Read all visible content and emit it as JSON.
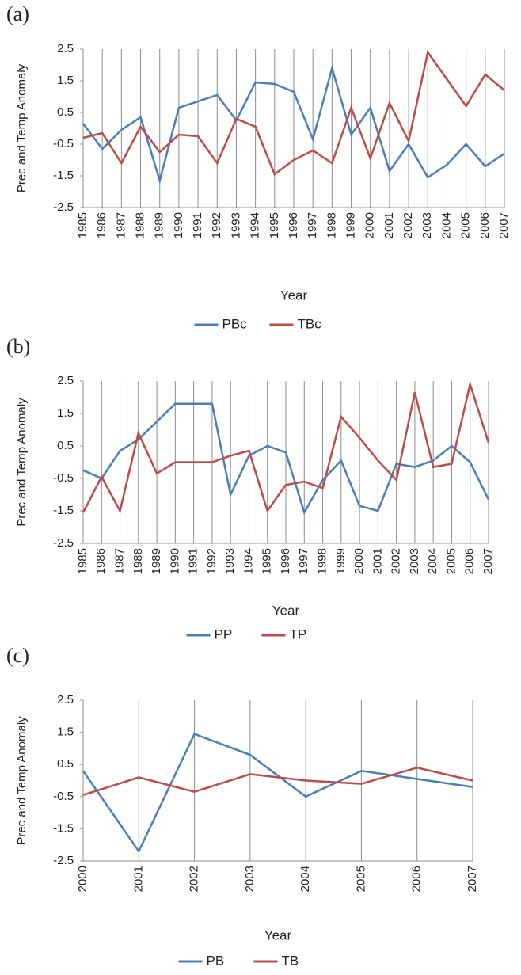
{
  "chart_data": [
    {
      "type": "line",
      "title": "(a)",
      "x_label": "Year",
      "y_label": "Prec and Temp Anomaly",
      "categories": [
        "1985",
        "1986",
        "1987",
        "1988",
        "1989",
        "1990",
        "1991",
        "1992",
        "1993",
        "1994",
        "1995",
        "1996",
        "1997",
        "1998",
        "1999",
        "2000",
        "2001",
        "2002",
        "2003",
        "2004",
        "2005",
        "2006",
        "2007"
      ],
      "series": [
        {
          "name": "PBc",
          "color": "#4a7ebb",
          "values": [
            0.15,
            -0.65,
            -0.05,
            0.35,
            -1.65,
            0.65,
            0.85,
            1.05,
            0.25,
            1.45,
            1.4,
            1.15,
            -0.35,
            1.9,
            -0.2,
            0.65,
            -1.35,
            -0.5,
            -1.55,
            -1.15,
            -0.5,
            -1.2,
            -0.8
          ]
        },
        {
          "name": "TBc",
          "color": "#be4b48",
          "values": [
            -0.3,
            -0.15,
            -1.1,
            0.05,
            -0.75,
            -0.2,
            -0.25,
            -1.1,
            0.3,
            0.05,
            -1.45,
            -1.0,
            -0.7,
            -1.1,
            0.65,
            -0.95,
            0.8,
            -0.4,
            2.4,
            1.55,
            0.7,
            1.7,
            1.2
          ]
        }
      ],
      "ylim": [
        -2.5,
        2.5
      ],
      "yticks": [
        -2.5,
        -1.5,
        -0.5,
        0.5,
        1.5,
        2.5
      ],
      "grid": "x",
      "legend": "bottom"
    },
    {
      "type": "line",
      "title": "(b)",
      "x_label": "Year",
      "y_label": "Prec and Temp Anomaly",
      "categories": [
        "1985",
        "1986",
        "1987",
        "1988",
        "1989",
        "1990",
        "1991",
        "1992",
        "1993",
        "1994",
        "1995",
        "1996",
        "1997",
        "1998",
        "1999",
        "2000",
        "2001",
        "2002",
        "2003",
        "2004",
        "2005",
        "2006",
        "2007"
      ],
      "series": [
        {
          "name": "PP",
          "color": "#4a7ebb",
          "values": [
            -0.25,
            -0.5,
            0.35,
            0.7,
            1.25,
            1.8,
            1.8,
            1.8,
            -1.0,
            0.2,
            0.5,
            0.3,
            -1.55,
            -0.55,
            0.05,
            -1.35,
            -1.5,
            -0.05,
            -0.15,
            0.05,
            0.5,
            0.0,
            -1.15
          ]
        },
        {
          "name": "TP",
          "color": "#be4b48",
          "values": [
            -1.55,
            -0.45,
            -1.5,
            0.9,
            -0.35,
            0.0,
            0.0,
            0.0,
            0.2,
            0.35,
            -1.5,
            -0.7,
            -0.6,
            -0.8,
            1.4,
            0.75,
            0.05,
            -0.55,
            2.15,
            -0.15,
            -0.05,
            2.4,
            0.6
          ]
        }
      ],
      "ylim": [
        -2.5,
        2.5
      ],
      "yticks": [
        -2.5,
        -1.5,
        -0.5,
        0.5,
        1.5,
        2.5
      ],
      "grid": "x",
      "legend": "bottom"
    },
    {
      "type": "line",
      "title": "(c)",
      "x_label": "Year",
      "y_label": "Prec and Temp Anomaly",
      "categories": [
        "2000",
        "2001",
        "2002",
        "2003",
        "2004",
        "2005",
        "2006",
        "2007"
      ],
      "series": [
        {
          "name": "PB",
          "color": "#4a7ebb",
          "values": [
            0.3,
            -2.2,
            1.45,
            0.8,
            -0.5,
            0.3,
            0.05,
            -0.2
          ]
        },
        {
          "name": "TB",
          "color": "#be4b48",
          "values": [
            -0.45,
            0.1,
            -0.35,
            0.2,
            0.0,
            -0.1,
            0.4,
            0.0
          ]
        }
      ],
      "ylim": [
        -2.5,
        2.5
      ],
      "yticks": [
        -2.5,
        -1.5,
        -0.5,
        0.5,
        1.5,
        2.5
      ],
      "grid": "x",
      "legend": "bottom"
    }
  ]
}
